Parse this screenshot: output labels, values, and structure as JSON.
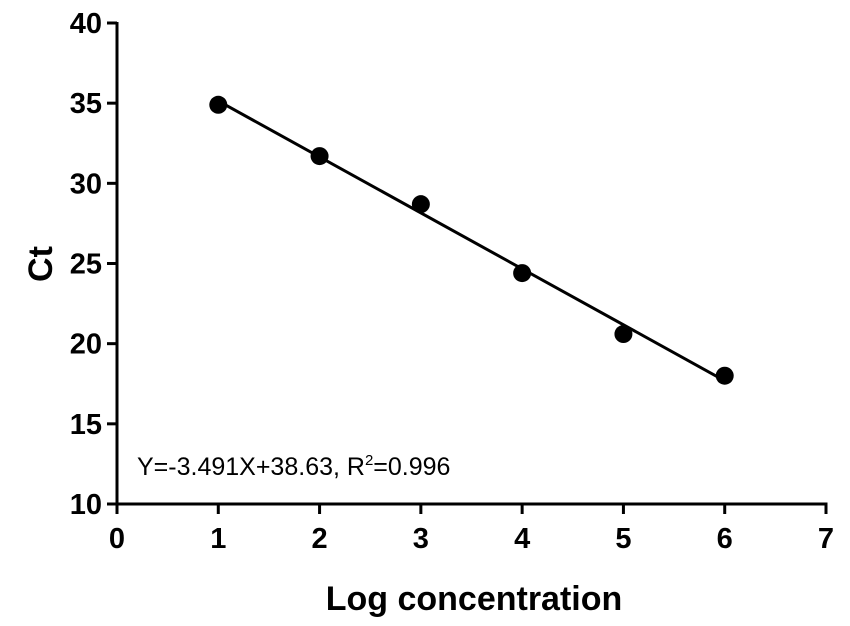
{
  "chart_data": {
    "type": "scatter",
    "xlabel": "Log concentration",
    "ylabel": "Ct",
    "xlim": [
      0,
      7
    ],
    "ylim": [
      10,
      40
    ],
    "x_ticks": [
      0,
      1,
      2,
      3,
      4,
      5,
      6,
      7
    ],
    "y_ticks": [
      10,
      15,
      20,
      25,
      30,
      35,
      40
    ],
    "grid": false,
    "series": [
      {
        "x": [
          1,
          2,
          3,
          4,
          5,
          6
        ],
        "y": [
          34.9,
          31.7,
          28.7,
          24.4,
          20.6,
          18.0
        ],
        "color": "#000000"
      }
    ],
    "fit_line": {
      "slope": -3.491,
      "intercept": 38.63,
      "x_range": [
        1,
        6
      ],
      "color": "#000000"
    },
    "annotation": {
      "equation": "Y=-3.491X+38.63, R",
      "superscript": "2",
      "r2_value": "=0.996"
    }
  }
}
